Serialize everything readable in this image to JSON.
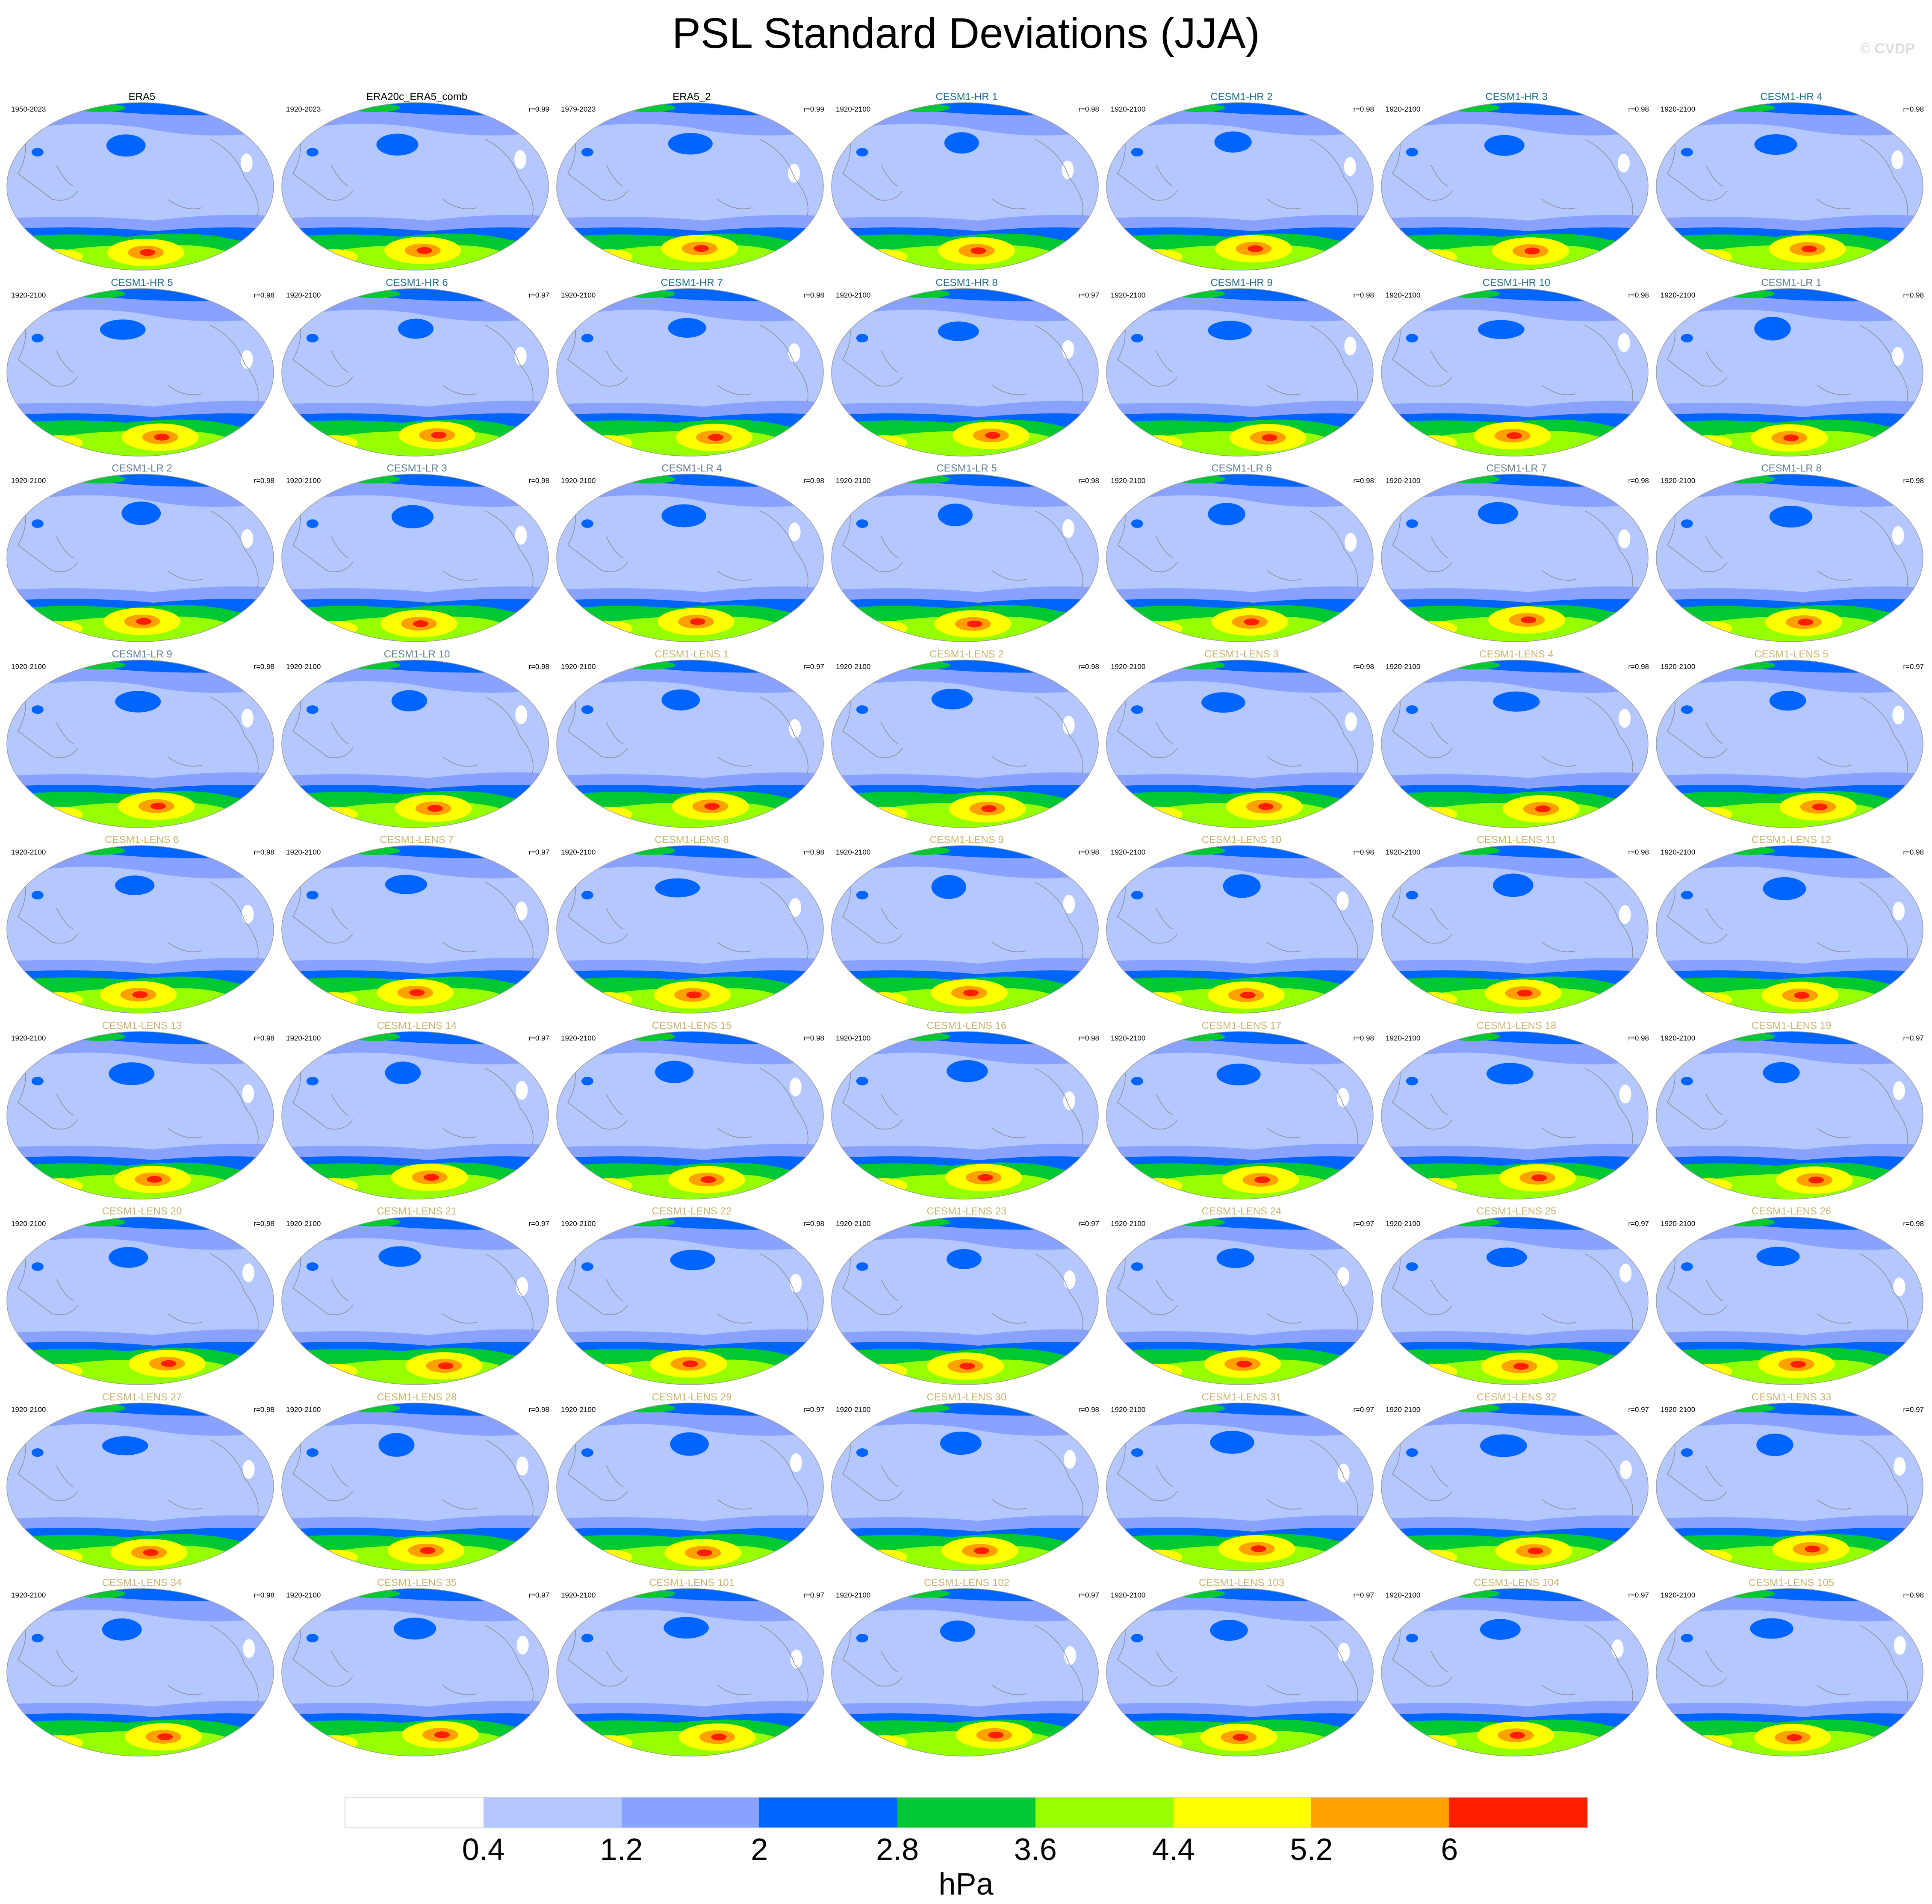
{
  "title": "PSL Standard Deviations (JJA)",
  "credit": "© CVDP",
  "colors": {
    "levels": [
      "#ffffff",
      "#b4c8ff",
      "#8aa2ff",
      "#0064ff",
      "#00c832",
      "#96ff00",
      "#ffff00",
      "#ffa000",
      "#ff1e00"
    ],
    "land_outline": "#8a8a8a",
    "globe_outline": "#9a9a9a",
    "title_obs": "#000000",
    "title_hr": "#1f6e8c",
    "title_lr": "#5f7f8f",
    "title_lens": "#c8b46e"
  },
  "colorbar": {
    "labels": [
      "0.4",
      "1.2",
      "2",
      "2.8",
      "3.6",
      "4.4",
      "5.2",
      "6"
    ],
    "units": "hPa"
  },
  "panels": [
    {
      "name": "ERA5",
      "years": "1950-2023",
      "corr": "",
      "group": "obs"
    },
    {
      "name": "ERA20c_ERA5_comb",
      "years": "1920-2023",
      "corr": "r=0.99",
      "group": "obs"
    },
    {
      "name": "ERA5_2",
      "years": "1979-2023",
      "corr": "r=0.99",
      "group": "obs"
    },
    {
      "name": "CESM1-HR 1",
      "years": "1920-2100",
      "corr": "r=0.98",
      "group": "hr"
    },
    {
      "name": "CESM1-HR 2",
      "years": "1920-2100",
      "corr": "r=0.98",
      "group": "hr"
    },
    {
      "name": "CESM1-HR 3",
      "years": "1920-2100",
      "corr": "r=0.98",
      "group": "hr"
    },
    {
      "name": "CESM1-HR 4",
      "years": "1920-2100",
      "corr": "r=0.98",
      "group": "hr"
    },
    {
      "name": "CESM1-HR 5",
      "years": "1920-2100",
      "corr": "r=0.98",
      "group": "hr"
    },
    {
      "name": "CESM1-HR 6",
      "years": "1920-2100",
      "corr": "r=0.97",
      "group": "hr"
    },
    {
      "name": "CESM1-HR 7",
      "years": "1920-2100",
      "corr": "r=0.98",
      "group": "hr"
    },
    {
      "name": "CESM1-HR 8",
      "years": "1920-2100",
      "corr": "r=0.97",
      "group": "hr"
    },
    {
      "name": "CESM1-HR 9",
      "years": "1920-2100",
      "corr": "r=0.98",
      "group": "hr"
    },
    {
      "name": "CESM1-HR 10",
      "years": "1920-2100",
      "corr": "r=0.98",
      "group": "hr"
    },
    {
      "name": "CESM1-LR 1",
      "years": "1920-2100",
      "corr": "r=0.98",
      "group": "lr"
    },
    {
      "name": "CESM1-LR 2",
      "years": "1920-2100",
      "corr": "r=0.98",
      "group": "lr"
    },
    {
      "name": "CESM1-LR 3",
      "years": "1920-2100",
      "corr": "r=0.98",
      "group": "lr"
    },
    {
      "name": "CESM1-LR 4",
      "years": "1920-2100",
      "corr": "r=0.98",
      "group": "lr"
    },
    {
      "name": "CESM1-LR 5",
      "years": "1920-2100",
      "corr": "r=0.98",
      "group": "lr"
    },
    {
      "name": "CESM1-LR 6",
      "years": "1920-2100",
      "corr": "r=0.98",
      "group": "lr"
    },
    {
      "name": "CESM1-LR 7",
      "years": "1920-2100",
      "corr": "r=0.98",
      "group": "lr"
    },
    {
      "name": "CESM1-LR 8",
      "years": "1920-2100",
      "corr": "r=0.98",
      "group": "lr"
    },
    {
      "name": "CESM1-LR 9",
      "years": "1920-2100",
      "corr": "r=0.98",
      "group": "lr"
    },
    {
      "name": "CESM1-LR 10",
      "years": "1920-2100",
      "corr": "r=0.98",
      "group": "lr"
    },
    {
      "name": "CESM1-LENS 1",
      "years": "1920-2100",
      "corr": "r=0.97",
      "group": "lens"
    },
    {
      "name": "CESM1-LENS 2",
      "years": "1920-2100",
      "corr": "r=0.98",
      "group": "lens"
    },
    {
      "name": "CESM1-LENS 3",
      "years": "1920-2100",
      "corr": "r=0.98",
      "group": "lens"
    },
    {
      "name": "CESM1-LENS 4",
      "years": "1920-2100",
      "corr": "r=0.98",
      "group": "lens"
    },
    {
      "name": "CESM1-LENS 5",
      "years": "1920-2100",
      "corr": "r=0.97",
      "group": "lens"
    },
    {
      "name": "CESM1-LENS 6",
      "years": "1920-2100",
      "corr": "r=0.98",
      "group": "lens"
    },
    {
      "name": "CESM1-LENS 7",
      "years": "1920-2100",
      "corr": "r=0.97",
      "group": "lens"
    },
    {
      "name": "CESM1-LENS 8",
      "years": "1920-2100",
      "corr": "r=0.98",
      "group": "lens"
    },
    {
      "name": "CESM1-LENS 9",
      "years": "1920-2100",
      "corr": "r=0.98",
      "group": "lens"
    },
    {
      "name": "CESM1-LENS 10",
      "years": "1920-2100",
      "corr": "r=0.98",
      "group": "lens"
    },
    {
      "name": "CESM1-LENS 11",
      "years": "1920-2100",
      "corr": "r=0.98",
      "group": "lens"
    },
    {
      "name": "CESM1-LENS 12",
      "years": "1920-2100",
      "corr": "r=0.98",
      "group": "lens"
    },
    {
      "name": "CESM1-LENS 13",
      "years": "1920-2100",
      "corr": "r=0.98",
      "group": "lens"
    },
    {
      "name": "CESM1-LENS 14",
      "years": "1920-2100",
      "corr": "r=0.97",
      "group": "lens"
    },
    {
      "name": "CESM1-LENS 15",
      "years": "1920-2100",
      "corr": "r=0.98",
      "group": "lens"
    },
    {
      "name": "CESM1-LENS 16",
      "years": "1920-2100",
      "corr": "r=0.98",
      "group": "lens"
    },
    {
      "name": "CESM1-LENS 17",
      "years": "1920-2100",
      "corr": "r=0.98",
      "group": "lens"
    },
    {
      "name": "CESM1-LENS 18",
      "years": "1920-2100",
      "corr": "r=0.98",
      "group": "lens"
    },
    {
      "name": "CESM1-LENS 19",
      "years": "1920-2100",
      "corr": "r=0.97",
      "group": "lens"
    },
    {
      "name": "CESM1-LENS 20",
      "years": "1920-2100",
      "corr": "r=0.98",
      "group": "lens"
    },
    {
      "name": "CESM1-LENS 21",
      "years": "1920-2100",
      "corr": "r=0.97",
      "group": "lens"
    },
    {
      "name": "CESM1-LENS 22",
      "years": "1920-2100",
      "corr": "r=0.98",
      "group": "lens"
    },
    {
      "name": "CESM1-LENS 23",
      "years": "1920-2100",
      "corr": "r=0.97",
      "group": "lens"
    },
    {
      "name": "CESM1-LENS 24",
      "years": "1920-2100",
      "corr": "r=0.97",
      "group": "lens"
    },
    {
      "name": "CESM1-LENS 25",
      "years": "1920-2100",
      "corr": "r=0.97",
      "group": "lens"
    },
    {
      "name": "CESM1-LENS 26",
      "years": "1920-2100",
      "corr": "r=0.98",
      "group": "lens"
    },
    {
      "name": "CESM1-LENS 27",
      "years": "1920-2100",
      "corr": "r=0.98",
      "group": "lens"
    },
    {
      "name": "CESM1-LENS 28",
      "years": "1920-2100",
      "corr": "r=0.98",
      "group": "lens"
    },
    {
      "name": "CESM1-LENS 29",
      "years": "1920-2100",
      "corr": "r=0.97",
      "group": "lens"
    },
    {
      "name": "CESM1-LENS 30",
      "years": "1920-2100",
      "corr": "r=0.98",
      "group": "lens"
    },
    {
      "name": "CESM1-LENS 31",
      "years": "1920-2100",
      "corr": "r=0.97",
      "group": "lens"
    },
    {
      "name": "CESM1-LENS 32",
      "years": "1920-2100",
      "corr": "r=0.97",
      "group": "lens"
    },
    {
      "name": "CESM1-LENS 33",
      "years": "1920-2100",
      "corr": "r=0.97",
      "group": "lens"
    },
    {
      "name": "CESM1-LENS 34",
      "years": "1920-2100",
      "corr": "r=0.98",
      "group": "lens"
    },
    {
      "name": "CESM1-LENS 35",
      "years": "1920-2100",
      "corr": "r=0.97",
      "group": "lens"
    },
    {
      "name": "CESM1-LENS 101",
      "years": "1920-2100",
      "corr": "r=0.97",
      "group": "lens"
    },
    {
      "name": "CESM1-LENS 102",
      "years": "1920-2100",
      "corr": "r=0.97",
      "group": "lens"
    },
    {
      "name": "CESM1-LENS 103",
      "years": "1920-2100",
      "corr": "r=0.97",
      "group": "lens"
    },
    {
      "name": "CESM1-LENS 104",
      "years": "1920-2100",
      "corr": "r=0.97",
      "group": "lens"
    },
    {
      "name": "CESM1-LENS 105",
      "years": "1920-2100",
      "corr": "r=0.98",
      "group": "lens"
    }
  ]
}
